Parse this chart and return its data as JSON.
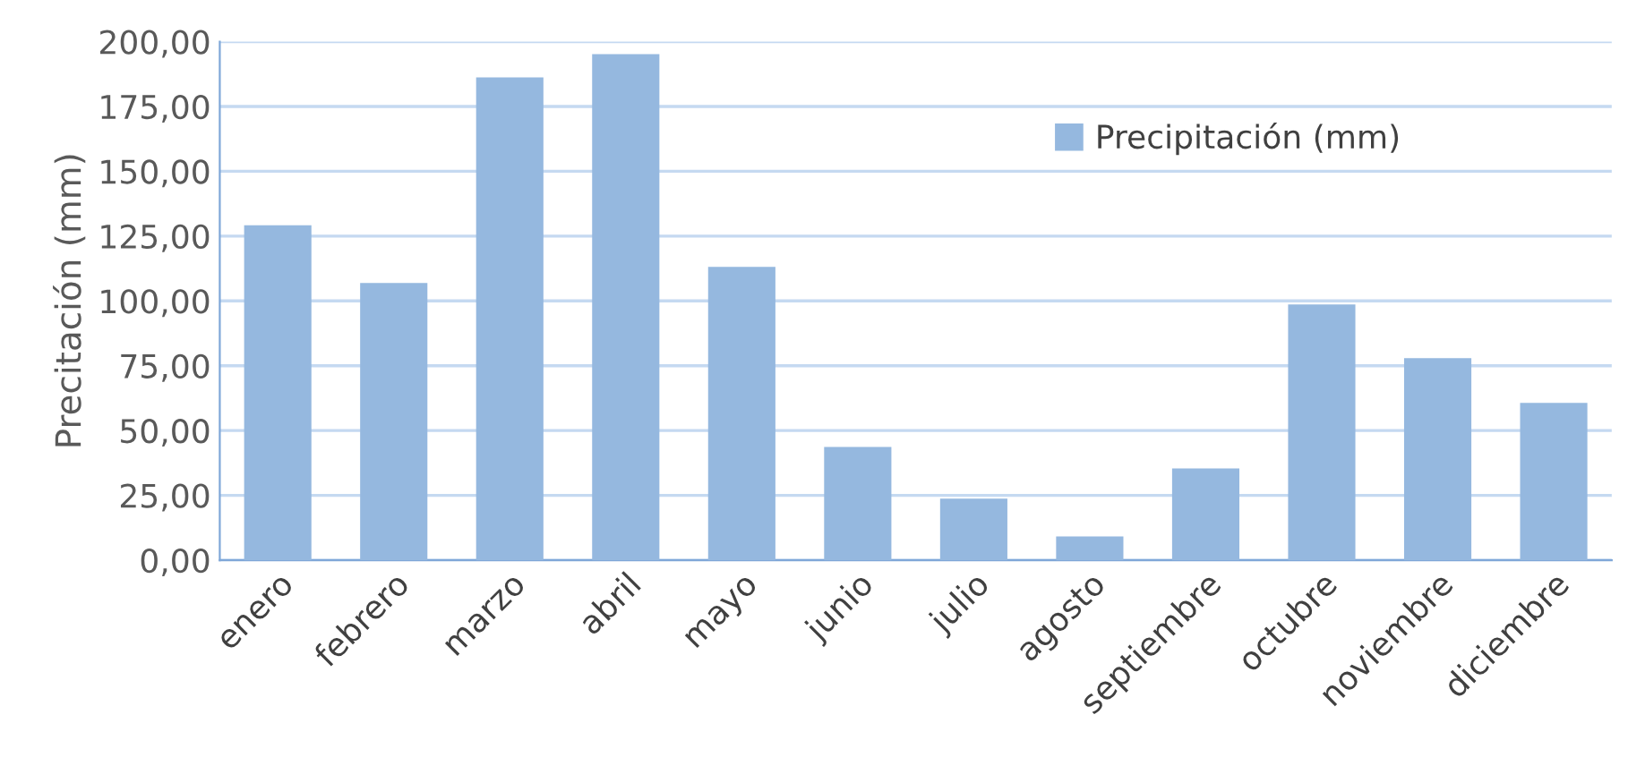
{
  "chart_data": {
    "type": "bar",
    "ylabel": "Precitación (mm)",
    "categories": [
      "enero",
      "febrero",
      "marzo",
      "abril",
      "mayo",
      "junio",
      "julio",
      "agosto",
      "septiembre",
      "octubre",
      "noviembre",
      "diciembre"
    ],
    "series": [
      {
        "name": "Precipitación (mm)",
        "color": "#95b8df",
        "values": [
          129.2,
          106.9,
          186.2,
          195.2,
          113.1,
          43.7,
          23.7,
          9.2,
          35.4,
          98.6,
          77.9,
          60.7
        ]
      }
    ],
    "ylim": [
      0,
      200
    ],
    "yticks": [
      {
        "value": 0,
        "label": "0,00"
      },
      {
        "value": 25,
        "label": "25,00"
      },
      {
        "value": 50,
        "label": "50,00"
      },
      {
        "value": 75,
        "label": "75,00"
      },
      {
        "value": 100,
        "label": "100,00"
      },
      {
        "value": 125,
        "label": "125,00"
      },
      {
        "value": 150,
        "label": "150,00"
      },
      {
        "value": 175,
        "label": "175,00"
      },
      {
        "value": 200,
        "label": "200,00"
      }
    ],
    "grid": "y",
    "legend": "top right"
  }
}
